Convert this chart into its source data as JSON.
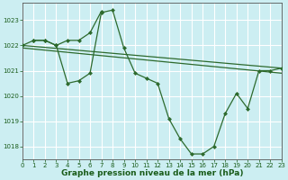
{
  "series": [
    {
      "x": [
        0,
        1,
        2,
        3,
        4,
        5,
        6,
        7,
        8,
        9,
        10,
        11,
        12,
        13,
        14,
        15,
        16,
        17,
        18,
        19,
        20,
        21,
        22,
        23
      ],
      "y": [
        1022.0,
        1022.2,
        1022.2,
        1022.0,
        1020.5,
        1020.6,
        1020.9,
        1023.3,
        1023.4,
        1021.9,
        1020.9,
        1020.7,
        1020.5,
        1019.1,
        1018.3,
        1017.7,
        1017.7,
        1018.0,
        1019.3,
        1020.1,
        1019.5,
        1021.0,
        1021.0,
        1021.1
      ],
      "color": "#2d6a2d",
      "linewidth": 0.9,
      "marker": "D",
      "markersize": 2.0
    },
    {
      "x": [
        0,
        23
      ],
      "y": [
        1022.0,
        1021.1
      ],
      "color": "#2d6a2d",
      "linewidth": 0.9,
      "marker": null,
      "markersize": 0
    },
    {
      "x": [
        0,
        23
      ],
      "y": [
        1021.9,
        1020.9
      ],
      "color": "#2d6a2d",
      "linewidth": 0.9,
      "marker": null,
      "markersize": 0
    },
    {
      "x": [
        1,
        2,
        3,
        4,
        5,
        6,
        7
      ],
      "y": [
        1022.2,
        1022.2,
        1022.0,
        1022.2,
        1022.2,
        1022.5,
        1023.35
      ],
      "color": "#2d6a2d",
      "linewidth": 0.9,
      "marker": "D",
      "markersize": 2.0
    }
  ],
  "xlim": [
    0,
    23
  ],
  "ylim": [
    1017.5,
    1023.7
  ],
  "yticks": [
    1018,
    1019,
    1020,
    1021,
    1022,
    1023
  ],
  "xticks": [
    0,
    1,
    2,
    3,
    4,
    5,
    6,
    7,
    8,
    9,
    10,
    11,
    12,
    13,
    14,
    15,
    16,
    17,
    18,
    19,
    20,
    21,
    22,
    23
  ],
  "xlabel": "Graphe pression niveau de la mer (hPa)",
  "bg_color": "#cceef2",
  "grid_color": "#ffffff",
  "line_color": "#2d6a2d",
  "text_color": "#1a5c1a",
  "label_fontsize": 6.5,
  "tick_fontsize": 5.0
}
